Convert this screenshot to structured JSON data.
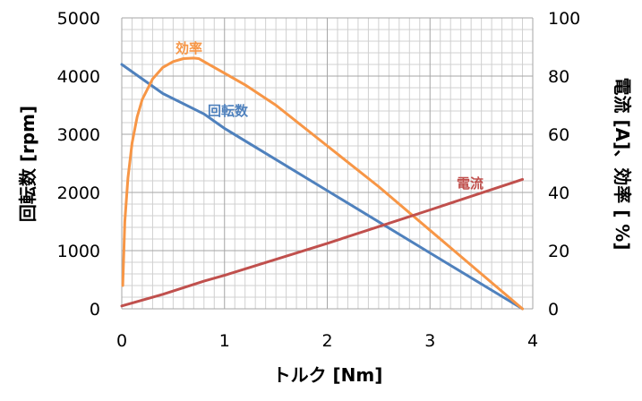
{
  "chart_data": {
    "type": "line",
    "title": "",
    "xlabel": "トルク [Nm]",
    "ylabel_left": "回転数 [rpm]",
    "ylabel_right": "電流 [A]、効率 [ %]",
    "xlim": [
      0,
      4
    ],
    "ylim_left": [
      0,
      5000
    ],
    "ylim_right": [
      0,
      100
    ],
    "x_ticks": [
      "0",
      "1",
      "2",
      "3",
      "4"
    ],
    "y_left_ticks": [
      "0",
      "1000",
      "2000",
      "3000",
      "4000",
      "5000"
    ],
    "y_right_ticks": [
      "0",
      "20",
      "40",
      "60",
      "80",
      "100"
    ],
    "grid": true,
    "series": [
      {
        "name": "回転数",
        "axis": "left",
        "color": "#4f81bd",
        "x": [
          0,
          0.4,
          0.8,
          1.0,
          2.0,
          3.0,
          3.9
        ],
        "y": [
          4200,
          3700,
          3350,
          3100,
          2030,
          960,
          0
        ]
      },
      {
        "name": "効率",
        "axis": "right",
        "color": "#f79646",
        "x": [
          0.01,
          0.03,
          0.06,
          0.1,
          0.15,
          0.2,
          0.3,
          0.4,
          0.5,
          0.6,
          0.7,
          0.75,
          0.8,
          1.0,
          1.2,
          1.5,
          2.0,
          2.5,
          3.0,
          3.5,
          3.9
        ],
        "y": [
          8,
          30,
          45,
          57,
          66,
          72,
          79,
          83,
          85,
          86,
          86.2,
          86,
          85,
          81,
          77,
          70,
          56,
          42,
          27,
          12,
          0
        ]
      },
      {
        "name": "電流",
        "axis": "right",
        "color": "#c0504d",
        "x": [
          0,
          0.4,
          0.8,
          1.0,
          2.0,
          3.0,
          3.9
        ],
        "y": [
          1,
          5,
          9.5,
          11.5,
          22.5,
          34,
          44.5
        ]
      }
    ],
    "annotations": [
      {
        "text": "効率",
        "series": "効率"
      },
      {
        "text": "回転数",
        "series": "回転数"
      },
      {
        "text": "電流",
        "series": "電流"
      }
    ]
  }
}
